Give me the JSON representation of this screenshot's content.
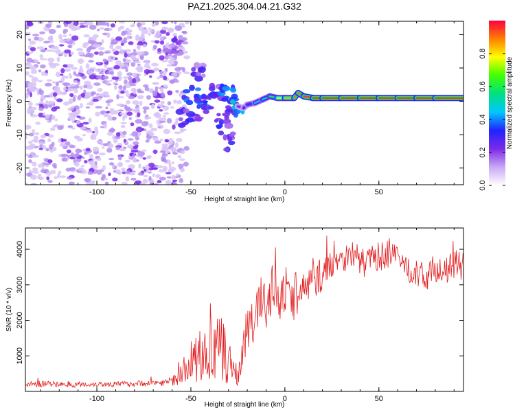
{
  "figure_title": "PAZ1.2025.304.04.21.G32",
  "chart_data": [
    {
      "type": "heatmap",
      "title": "PAZ1.2025.304.04.21.G32",
      "xlabel": "Height of straight line (km)",
      "ylabel": "Frequency (Hz)",
      "xlim": [
        -138,
        95
      ],
      "ylim": [
        -25,
        24
      ],
      "xticks": [
        -100,
        -50,
        0,
        50
      ],
      "yticks": [
        -20,
        -10,
        0,
        10,
        20
      ],
      "colorbar": {
        "label": "Normalized spectral amplitude",
        "range": [
          0,
          1
        ],
        "ticks": [
          0.0,
          0.2,
          0.4,
          0.6,
          0.8
        ],
        "tick_labels": [
          "0.0",
          "0.2",
          "0.4",
          "0.6",
          "0.8"
        ],
        "colormap": [
          "#ffffff",
          "#c9a8f5",
          "#7b2be6",
          "#2222ff",
          "#00c8ff",
          "#00e080",
          "#40ff00",
          "#ffff00",
          "#ff8000",
          "#ff0040"
        ]
      },
      "noise_region_x": [
        -138,
        -60
      ],
      "transition_blobs": [
        {
          "x": -50,
          "y": 2,
          "v": 0.35
        },
        {
          "x": -45,
          "y": -3,
          "v": 0.3
        },
        {
          "x": -52,
          "y": -5,
          "v": 0.25
        },
        {
          "x": -40,
          "y": 0,
          "v": 0.3
        },
        {
          "x": -35,
          "y": 3,
          "v": 0.25
        },
        {
          "x": -30,
          "y": 2,
          "v": 0.35
        },
        {
          "x": -28,
          "y": -2,
          "v": 0.3
        },
        {
          "x": -33,
          "y": -6,
          "v": 0.25
        },
        {
          "x": -47,
          "y": 9,
          "v": 0.2
        },
        {
          "x": -60,
          "y": 16,
          "v": 0.2
        },
        {
          "x": -30,
          "y": -12,
          "v": 0.25
        },
        {
          "x": -25,
          "y": -1,
          "v": 0.4
        }
      ],
      "signal_track": {
        "x": [
          -25,
          -22,
          -20,
          -16,
          -12,
          -8,
          -4,
          0,
          5,
          7,
          10,
          15,
          20,
          30,
          40,
          50,
          60,
          70,
          80,
          95
        ],
        "y": [
          -1.5,
          -2,
          -1,
          -0.5,
          0.5,
          1.5,
          1,
          1,
          1,
          2.5,
          1.5,
          1,
          1,
          1,
          1,
          1,
          1,
          1,
          1,
          1
        ],
        "amplitude": [
          0.25,
          0.3,
          0.35,
          0.45,
          0.5,
          0.6,
          0.75,
          0.85,
          0.9,
          0.9,
          0.95,
          0.95,
          0.95,
          0.95,
          0.95,
          0.95,
          0.95,
          0.95,
          0.95,
          0.95
        ]
      }
    },
    {
      "type": "line",
      "xlabel": "Height of straight line (km)",
      "ylabel": "SNR (10 * v/v)",
      "xlim": [
        -138,
        95
      ],
      "ylim": [
        0,
        4600
      ],
      "xticks": [
        -100,
        -50,
        0,
        50
      ],
      "yticks": [
        1000,
        2000,
        3000,
        4000
      ],
      "color": "#e31a1c",
      "series": [
        {
          "name": "SNR",
          "x": [
            -138,
            -130,
            -120,
            -110,
            -100,
            -90,
            -80,
            -70,
            -62,
            -56,
            -52,
            -50,
            -48,
            -45,
            -42,
            -40,
            -37,
            -35,
            -32,
            -30,
            -27,
            -25,
            -22,
            -20,
            -18,
            -15,
            -12,
            -10,
            -8,
            -5,
            -3,
            -1,
            0,
            3,
            6,
            10,
            15,
            20,
            25,
            28,
            30,
            35,
            38,
            42,
            45,
            50,
            55,
            60,
            65,
            70,
            75,
            80,
            85,
            90,
            95
          ],
          "y": [
            200,
            210,
            200,
            190,
            210,
            200,
            220,
            240,
            260,
            400,
            700,
            900,
            800,
            1100,
            900,
            1200,
            1000,
            1300,
            900,
            1100,
            500,
            400,
            1400,
            1700,
            1800,
            2200,
            2600,
            2400,
            2800,
            2900,
            2300,
            2600,
            3000,
            2400,
            2700,
            2900,
            3100,
            3300,
            3600,
            3800,
            3700,
            3900,
            3800,
            3600,
            3700,
            3800,
            3900,
            3700,
            3500,
            3300,
            3200,
            3500,
            3300,
            3600,
            3500
          ],
          "spread": [
            80,
            90,
            80,
            80,
            80,
            80,
            80,
            90,
            100,
            250,
            500,
            600,
            650,
            800,
            700,
            900,
            800,
            1000,
            900,
            800,
            400,
            300,
            600,
            700,
            600,
            700,
            800,
            700,
            800,
            700,
            600,
            600,
            700,
            600,
            600,
            500,
            500,
            500,
            400,
            400,
            400,
            400,
            400,
            400,
            400,
            400,
            450,
            400,
            400,
            400,
            400,
            400,
            400,
            400,
            400
          ]
        }
      ]
    }
  ]
}
